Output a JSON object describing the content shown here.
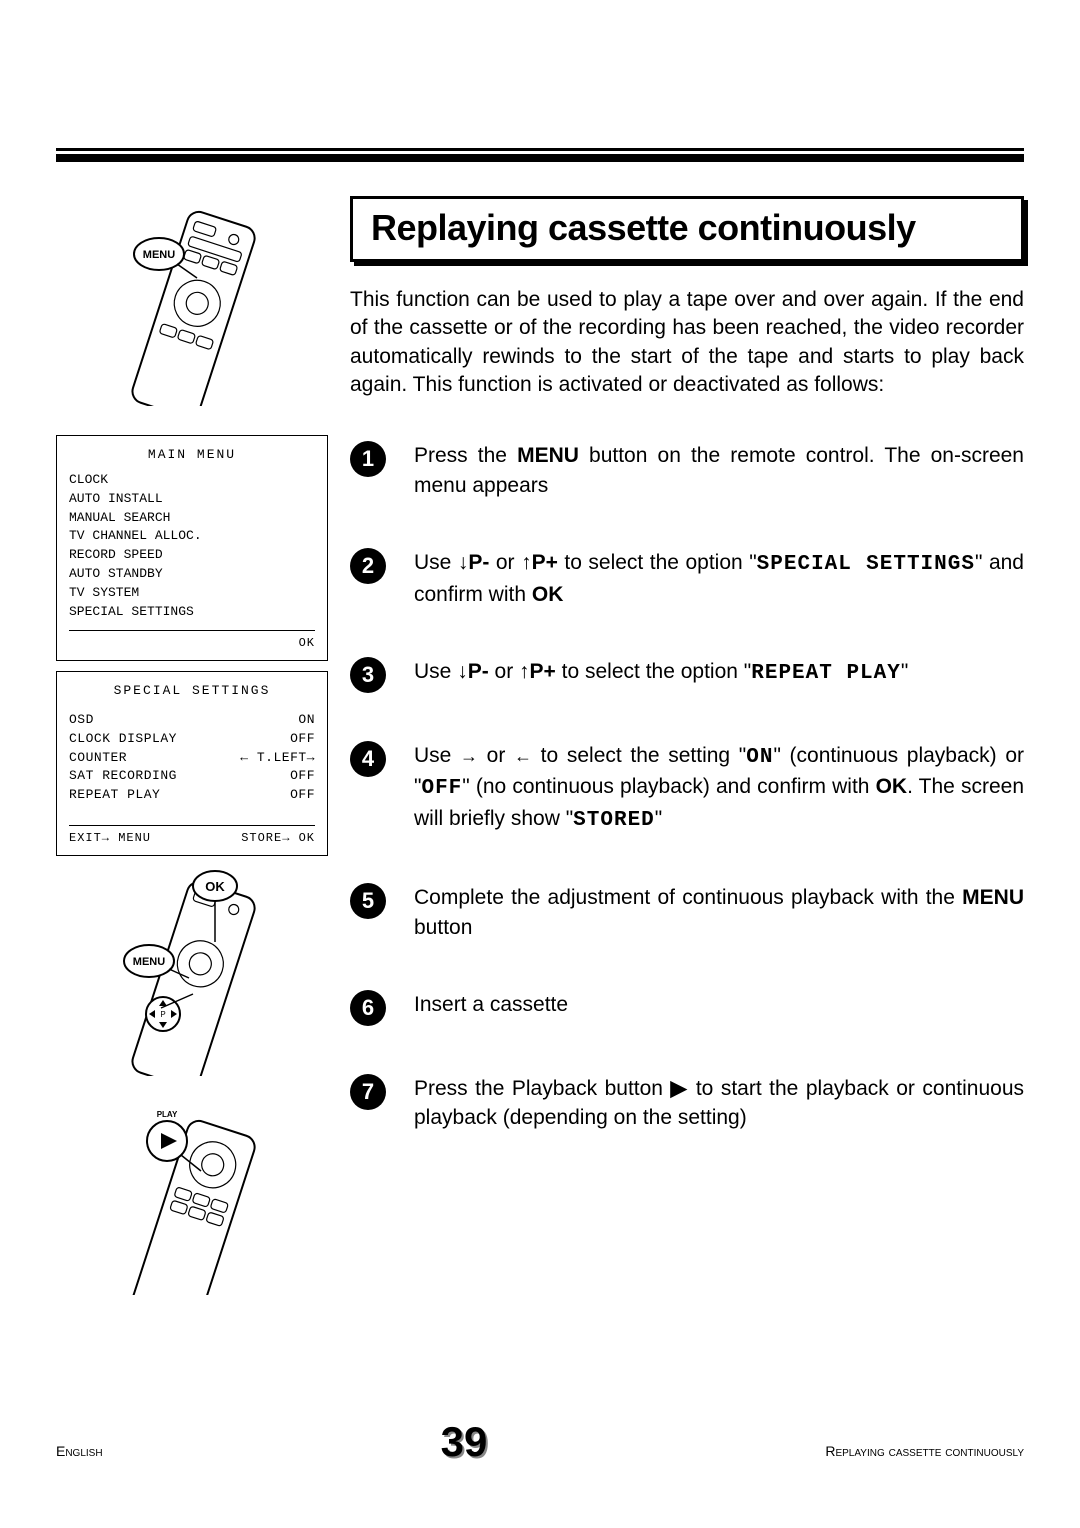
{
  "title": "Replaying cassette continuously",
  "intro": "This function can be used to play a tape over and over again. If the end of the cassette or of the recording has been reached, the video recorder automatically rewinds to the start of the tape and starts to play back again. This function is activated or deactivated as follows:",
  "steps": {
    "s1": {
      "num": "1",
      "pre": "Press the ",
      "btn": "MENU",
      "post": " button on the remote control. The on-screen menu appears"
    },
    "s2": {
      "num": "2",
      "pre": "Use ",
      "k1": "↓P-",
      "mid1": " or ",
      "k2": "↑P+",
      "mid2": " to select the option \"",
      "opt": "SPECIAL SETTINGS",
      "mid3": "\" and confirm with ",
      "ok": "OK"
    },
    "s3": {
      "num": "3",
      "pre": "Use ",
      "k1": "↓P-",
      "mid1": " or ",
      "k2": "↑P+",
      "mid2": " to select the option \"",
      "opt": "REPEAT PLAY",
      "post": "\""
    },
    "s4": {
      "num": "4",
      "pre": "Use ",
      "a1": "→",
      "mid1": " or ",
      "a2": "←",
      "mid2": " to select the setting \"",
      "on": "ON",
      "mid3": "\" (continuous playback) or \"",
      "off": "OFF",
      "mid4": "\" (no continuous playback) and confirm with ",
      "ok": "OK",
      "mid5": ". The screen will briefly show \"",
      "stored": "STORED",
      "post": "\""
    },
    "s5": {
      "num": "5",
      "pre": "Complete the adjustment of continuous playback with the ",
      "btn": "MENU",
      "post": " button"
    },
    "s6": {
      "num": "6",
      "text": "Insert a cassette"
    },
    "s7": {
      "num": "7",
      "pre": "Press the Playback button ",
      "sym": "▶",
      "post": " to start the playback or continuous playback (depending on the setting)"
    }
  },
  "main_menu": {
    "title": "MAIN MENU",
    "items": [
      "CLOCK",
      "AUTO INSTALL",
      "MANUAL SEARCH",
      "TV CHANNEL ALLOC.",
      "RECORD SPEED",
      "AUTO STANDBY",
      "TV SYSTEM",
      "SPECIAL SETTINGS"
    ],
    "footer_right": "OK"
  },
  "special_menu": {
    "title": "SPECIAL SETTINGS",
    "rows": [
      {
        "l": "OSD",
        "r": "ON"
      },
      {
        "l": "CLOCK DISPLAY",
        "r": "OFF"
      },
      {
        "l": "COUNTER",
        "r": "← T.LEFT→"
      },
      {
        "l": "SAT RECORDING",
        "r": "OFF"
      },
      {
        "l": "REPEAT PLAY",
        "r": "OFF"
      }
    ],
    "footer_left": "EXIT→ MENU",
    "footer_right": "STORE→ OK"
  },
  "remote_labels": {
    "menu": "MENU",
    "ok": "OK",
    "play": "PLAY"
  },
  "footer": {
    "left": "English",
    "page": "39",
    "right": "Replaying cassette continuously"
  },
  "colors": {
    "bg": "#ffffff",
    "fg": "#000000",
    "shadow": "#888888"
  }
}
